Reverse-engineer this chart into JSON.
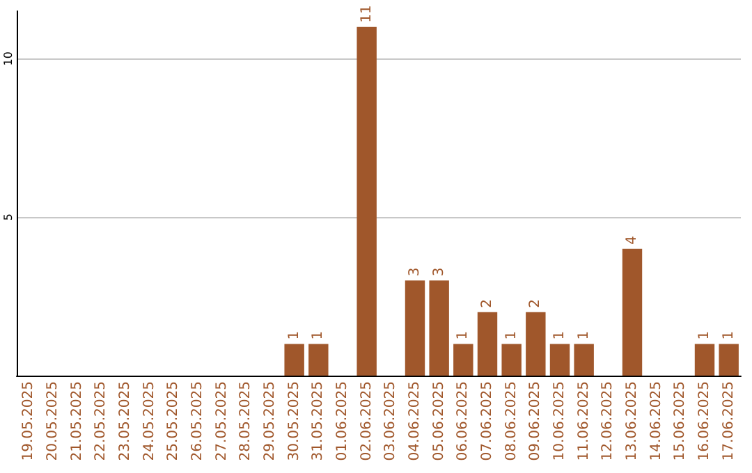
{
  "chart_data": {
    "type": "bar",
    "categories": [
      "19.05.2025",
      "20.05.2025",
      "21.05.2025",
      "22.05.2025",
      "23.05.2025",
      "24.05.2025",
      "25.05.2025",
      "26.05.2025",
      "27.05.2025",
      "28.05.2025",
      "29.05.2025",
      "30.05.2025",
      "31.05.2025",
      "01.06.2025",
      "02.06.2025",
      "03.06.2025",
      "04.06.2025",
      "05.06.2025",
      "06.06.2025",
      "07.06.2025",
      "08.06.2025",
      "09.06.2025",
      "10.06.2025",
      "11.06.2025",
      "12.06.2025",
      "13.06.2025",
      "14.06.2025",
      "15.06.2025",
      "16.06.2025",
      "17.06.2025"
    ],
    "values": [
      0,
      0,
      0,
      0,
      0,
      0,
      0,
      0,
      0,
      0,
      0,
      1,
      1,
      0,
      11,
      0,
      3,
      3,
      1,
      2,
      1,
      2,
      1,
      1,
      0,
      4,
      0,
      0,
      1,
      1
    ],
    "value_labels": [
      null,
      null,
      null,
      null,
      null,
      null,
      null,
      null,
      null,
      null,
      null,
      "1",
      "1",
      null,
      "11",
      null,
      "3",
      "3",
      "1",
      "2",
      "1",
      "2",
      "1",
      "1",
      null,
      "4",
      null,
      null,
      "1",
      "1"
    ],
    "color": "#a0572b",
    "ylim": [
      0,
      11.5
    ],
    "yticks": [
      5,
      10
    ],
    "grid": "y"
  }
}
